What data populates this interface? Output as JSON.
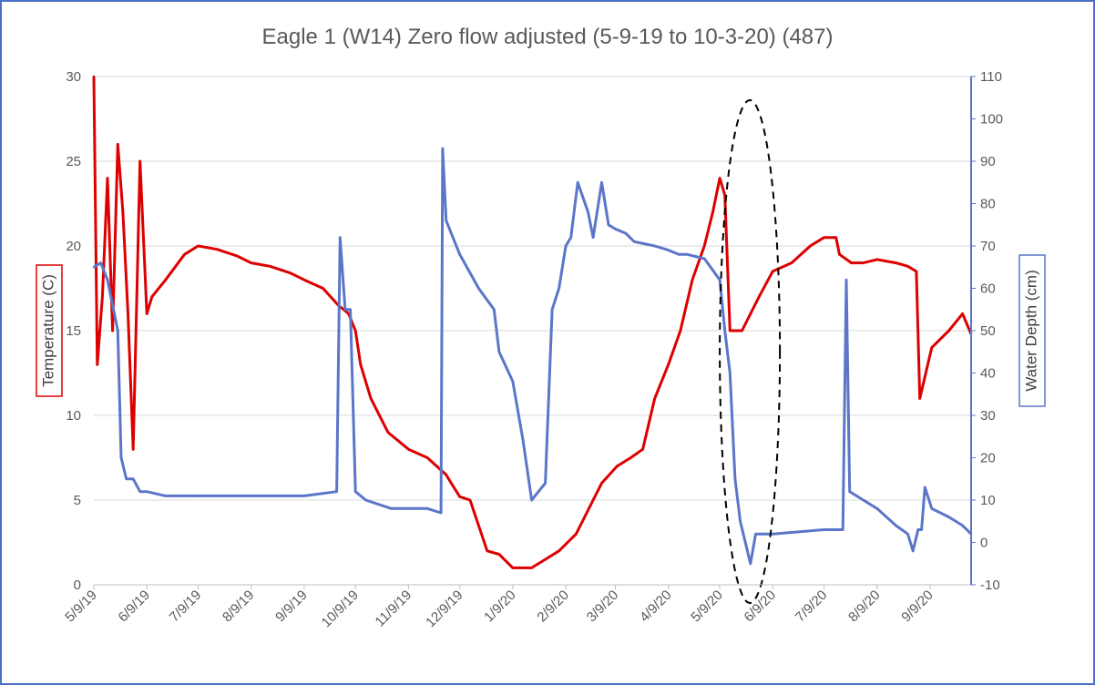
{
  "chart_data": {
    "type": "line",
    "title": "Eagle 1 (W14) Zero flow adjusted (5-9-19 to 10-3-20) (487)",
    "xlabel": "",
    "x_range": [
      "5/9/19",
      "10/3/20"
    ],
    "x_ticks": [
      "5/9/19",
      "6/9/19",
      "7/9/19",
      "8/9/19",
      "9/9/19",
      "10/9/19",
      "11/9/19",
      "12/9/19",
      "1/9/20",
      "2/9/20",
      "3/9/20",
      "4/9/20",
      "5/9/20",
      "6/9/20",
      "7/9/20",
      "8/9/20",
      "9/9/20"
    ],
    "y_left": {
      "label": "Temperature (C)",
      "range": [
        0,
        30
      ],
      "ticks": [
        "0",
        "5",
        "10",
        "15",
        "20",
        "25",
        "30"
      ],
      "color": "#dd0000"
    },
    "y_right": {
      "label": "Water Depth (cm)",
      "range": [
        -10,
        110
      ],
      "ticks": [
        "-10",
        "0",
        "10",
        "20",
        "30",
        "40",
        "50",
        "60",
        "70",
        "80",
        "90",
        "100",
        "110"
      ],
      "color": "#5b76c9"
    },
    "grid": true,
    "annotation": "dashed ellipse highlighting 5/9/20 to 6/9/20",
    "series": [
      {
        "axis": "left",
        "color": "#dd0000",
        "x": [
          "5/9/19",
          "5/11/19",
          "5/14/19",
          "5/17/19",
          "5/20/19",
          "5/23/19",
          "5/26/19",
          "5/29/19",
          "6/1/19",
          "6/5/19",
          "6/9/19",
          "6/12/19",
          "6/20/19",
          "7/1/19",
          "7/9/19",
          "7/20/19",
          "8/1/19",
          "8/9/19",
          "8/20/19",
          "9/1/19",
          "9/9/19",
          "9/20/19",
          "9/29/19",
          "10/5/19",
          "10/9/19",
          "10/12/19",
          "10/18/19",
          "10/28/19",
          "11/9/19",
          "11/20/19",
          "12/1/19",
          "12/4/19",
          "12/9/19",
          "12/15/19",
          "12/25/19",
          "1/1/20",
          "1/9/20",
          "1/20/20",
          "1/28/20",
          "2/5/20",
          "2/15/20",
          "2/25/20",
          "3/1/20",
          "3/10/20",
          "3/18/20",
          "3/25/20",
          "4/1/20",
          "4/9/20",
          "4/16/20",
          "4/23/20",
          "4/30/20",
          "5/5/20",
          "5/9/20",
          "5/12/20",
          "5/15/20",
          "5/22/20",
          "6/1/20",
          "6/9/20",
          "6/20/20",
          "7/1/20",
          "7/9/20",
          "7/16/20",
          "7/18/20",
          "7/25/20",
          "8/1/20",
          "8/9/20",
          "8/20/20",
          "8/27/20",
          "9/1/20",
          "9/3/20",
          "9/10/20",
          "9/20/20",
          "9/28/20",
          "10/3/20"
        ],
        "values": [
          30,
          13,
          17,
          24,
          15,
          26,
          22,
          16,
          8,
          25,
          16,
          17,
          18,
          19.5,
          20,
          19.8,
          19.4,
          19,
          18.8,
          18.4,
          18,
          17.5,
          16.5,
          16,
          15,
          13,
          11,
          9,
          8,
          7.5,
          6.5,
          6,
          5.2,
          5,
          2,
          1.8,
          1,
          1,
          1.5,
          2,
          3,
          5,
          6,
          7,
          7.5,
          8,
          11,
          13,
          15,
          18,
          20,
          22,
          24,
          23,
          15,
          15,
          17,
          18.5,
          19,
          20,
          20.5,
          20.5,
          19.5,
          19,
          19,
          19.2,
          19,
          18.8,
          18.5,
          11,
          14,
          15,
          16,
          14.8
        ]
      },
      {
        "axis": "right",
        "color": "#5b76c9",
        "x": [
          "5/9/19",
          "5/13/19",
          "5/17/19",
          "5/23/19",
          "5/25/19",
          "5/28/19",
          "6/1/19",
          "6/5/19",
          "6/9/19",
          "6/20/19",
          "7/9/19",
          "8/9/19",
          "9/9/19",
          "9/28/19",
          "9/30/19",
          "10/3/19",
          "10/6/19",
          "10/9/19",
          "10/15/19",
          "10/30/19",
          "11/9/19",
          "11/20/19",
          "11/28/19",
          "11/29/19",
          "12/1/19",
          "12/9/19",
          "12/20/19",
          "12/29/19",
          "1/1/20",
          "1/9/20",
          "1/15/20",
          "1/20/20",
          "1/28/20",
          "2/1/20",
          "2/5/20",
          "2/9/20",
          "2/12/20",
          "2/16/20",
          "2/22/20",
          "2/25/20",
          "3/1/20",
          "3/5/20",
          "3/9/20",
          "3/15/20",
          "3/20/20",
          "4/1/20",
          "4/9/20",
          "4/15/20",
          "4/20/20",
          "4/30/20",
          "5/9/20",
          "5/12/20",
          "5/15/20",
          "5/18/20",
          "5/21/20",
          "5/24/20",
          "5/27/20",
          "5/30/20",
          "6/1/20",
          "6/9/20",
          "7/9/20",
          "7/20/20",
          "7/22/20",
          "7/24/20",
          "8/1/20",
          "8/9/20",
          "8/20/20",
          "8/27/20",
          "8/30/20",
          "9/2/20",
          "9/4/20",
          "9/6/20",
          "9/10/20",
          "9/20/20",
          "9/28/20",
          "10/3/20"
        ],
        "values": [
          65,
          66,
          62,
          50,
          20,
          15,
          15,
          12,
          12,
          11,
          11,
          11,
          11,
          12,
          72,
          55,
          55,
          12,
          10,
          8,
          8,
          8,
          7,
          93,
          76,
          68,
          60,
          55,
          45,
          38,
          24,
          10,
          14,
          55,
          60,
          70,
          72,
          85,
          78,
          72,
          85,
          75,
          74,
          73,
          71,
          70,
          69,
          68,
          68,
          67,
          62,
          50,
          40,
          15,
          5,
          0,
          -5,
          2,
          2,
          2,
          3,
          3,
          62,
          12,
          10,
          8,
          4,
          2,
          -2,
          3,
          3,
          13,
          8,
          6,
          4,
          2
        ]
      }
    ]
  }
}
